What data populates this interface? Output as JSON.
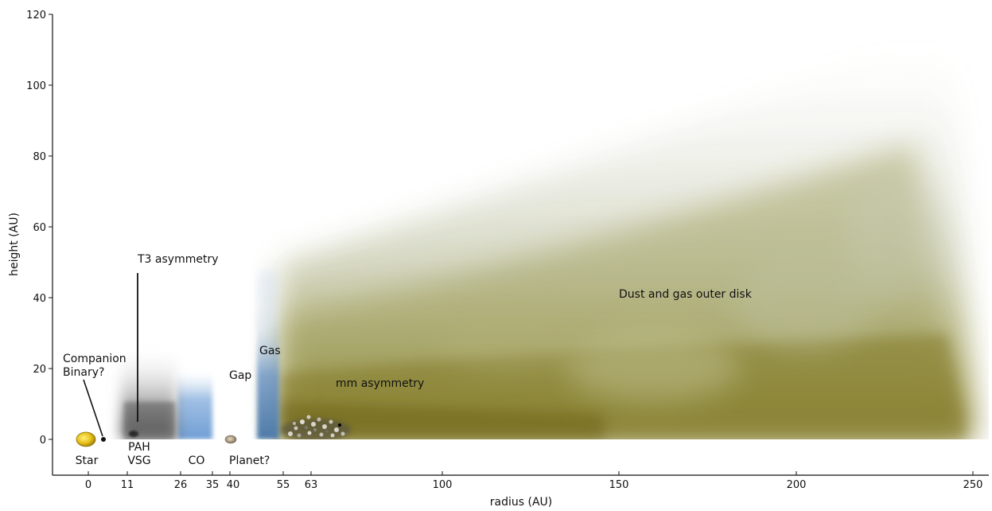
{
  "axes": {
    "x_label": "radius (AU)",
    "y_label": "height (AU)",
    "x_ticks": [
      "0",
      "11",
      "26",
      "35",
      "40",
      "55",
      "63",
      "100",
      "150",
      "200",
      "250"
    ],
    "y_ticks": [
      "0",
      "20",
      "40",
      "60",
      "80",
      "100",
      "120"
    ]
  },
  "labels": {
    "star": "Star",
    "companion_line1": "Companion",
    "companion_line2": "Binary?",
    "t3": "T3 asymmetry",
    "pah": "PAH",
    "vsg": "VSG",
    "co": "CO",
    "gap": "Gap",
    "planet": "Planet?",
    "gas": "Gas",
    "mm": "mm asymmetry",
    "outer_disk": "Dust and gas outer disk"
  },
  "colors": {
    "star": "#e8c21a",
    "co": "#7aa8d8",
    "gas": "#5f88b4",
    "outer_disk_core": "#8c8431",
    "outer_disk_mid": "#b8bc8c",
    "inner_gray": "#6e6e6e"
  }
}
